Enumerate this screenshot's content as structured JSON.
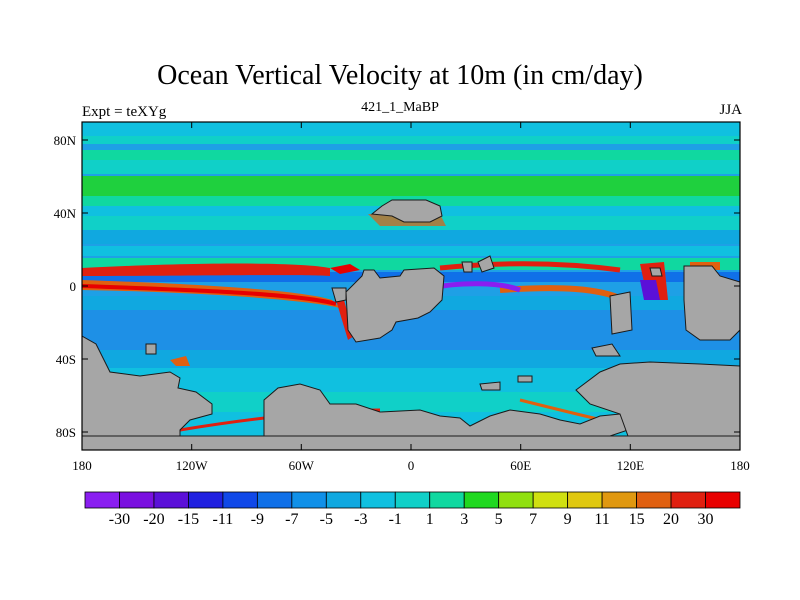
{
  "title": "Ocean Vertical Velocity at 10m (in cm/day)",
  "subtitle_left": "Expt = teXYg",
  "subtitle_center": "421_1_MaBP",
  "subtitle_right": "JJA",
  "colors": {
    "land": "#a6a6a6",
    "ocean_base": "#1ea0e6"
  },
  "lat_labels": [
    "80N",
    "40N",
    "0",
    "40S",
    "80S"
  ],
  "lon_labels": [
    "180",
    "120W",
    "60W",
    "0",
    "60E",
    "120E",
    "180"
  ],
  "colorbar": {
    "labels": [
      "-30",
      "-20",
      "-15",
      "-11",
      "-9",
      "-7",
      "-5",
      "-3",
      "-1",
      "1",
      "3",
      "5",
      "7",
      "9",
      "11",
      "15",
      "20",
      "30"
    ],
    "colors": [
      "#8a1ef0",
      "#7a10e0",
      "#5b10d8",
      "#2020e0",
      "#1048e8",
      "#1070e8",
      "#1090e8",
      "#10a8e0",
      "#10c0e0",
      "#10d0c8",
      "#10d8a0",
      "#20d820",
      "#90e010",
      "#d0e010",
      "#e0c810",
      "#e09810",
      "#e06010",
      "#e02010",
      "#e80000"
    ]
  }
}
